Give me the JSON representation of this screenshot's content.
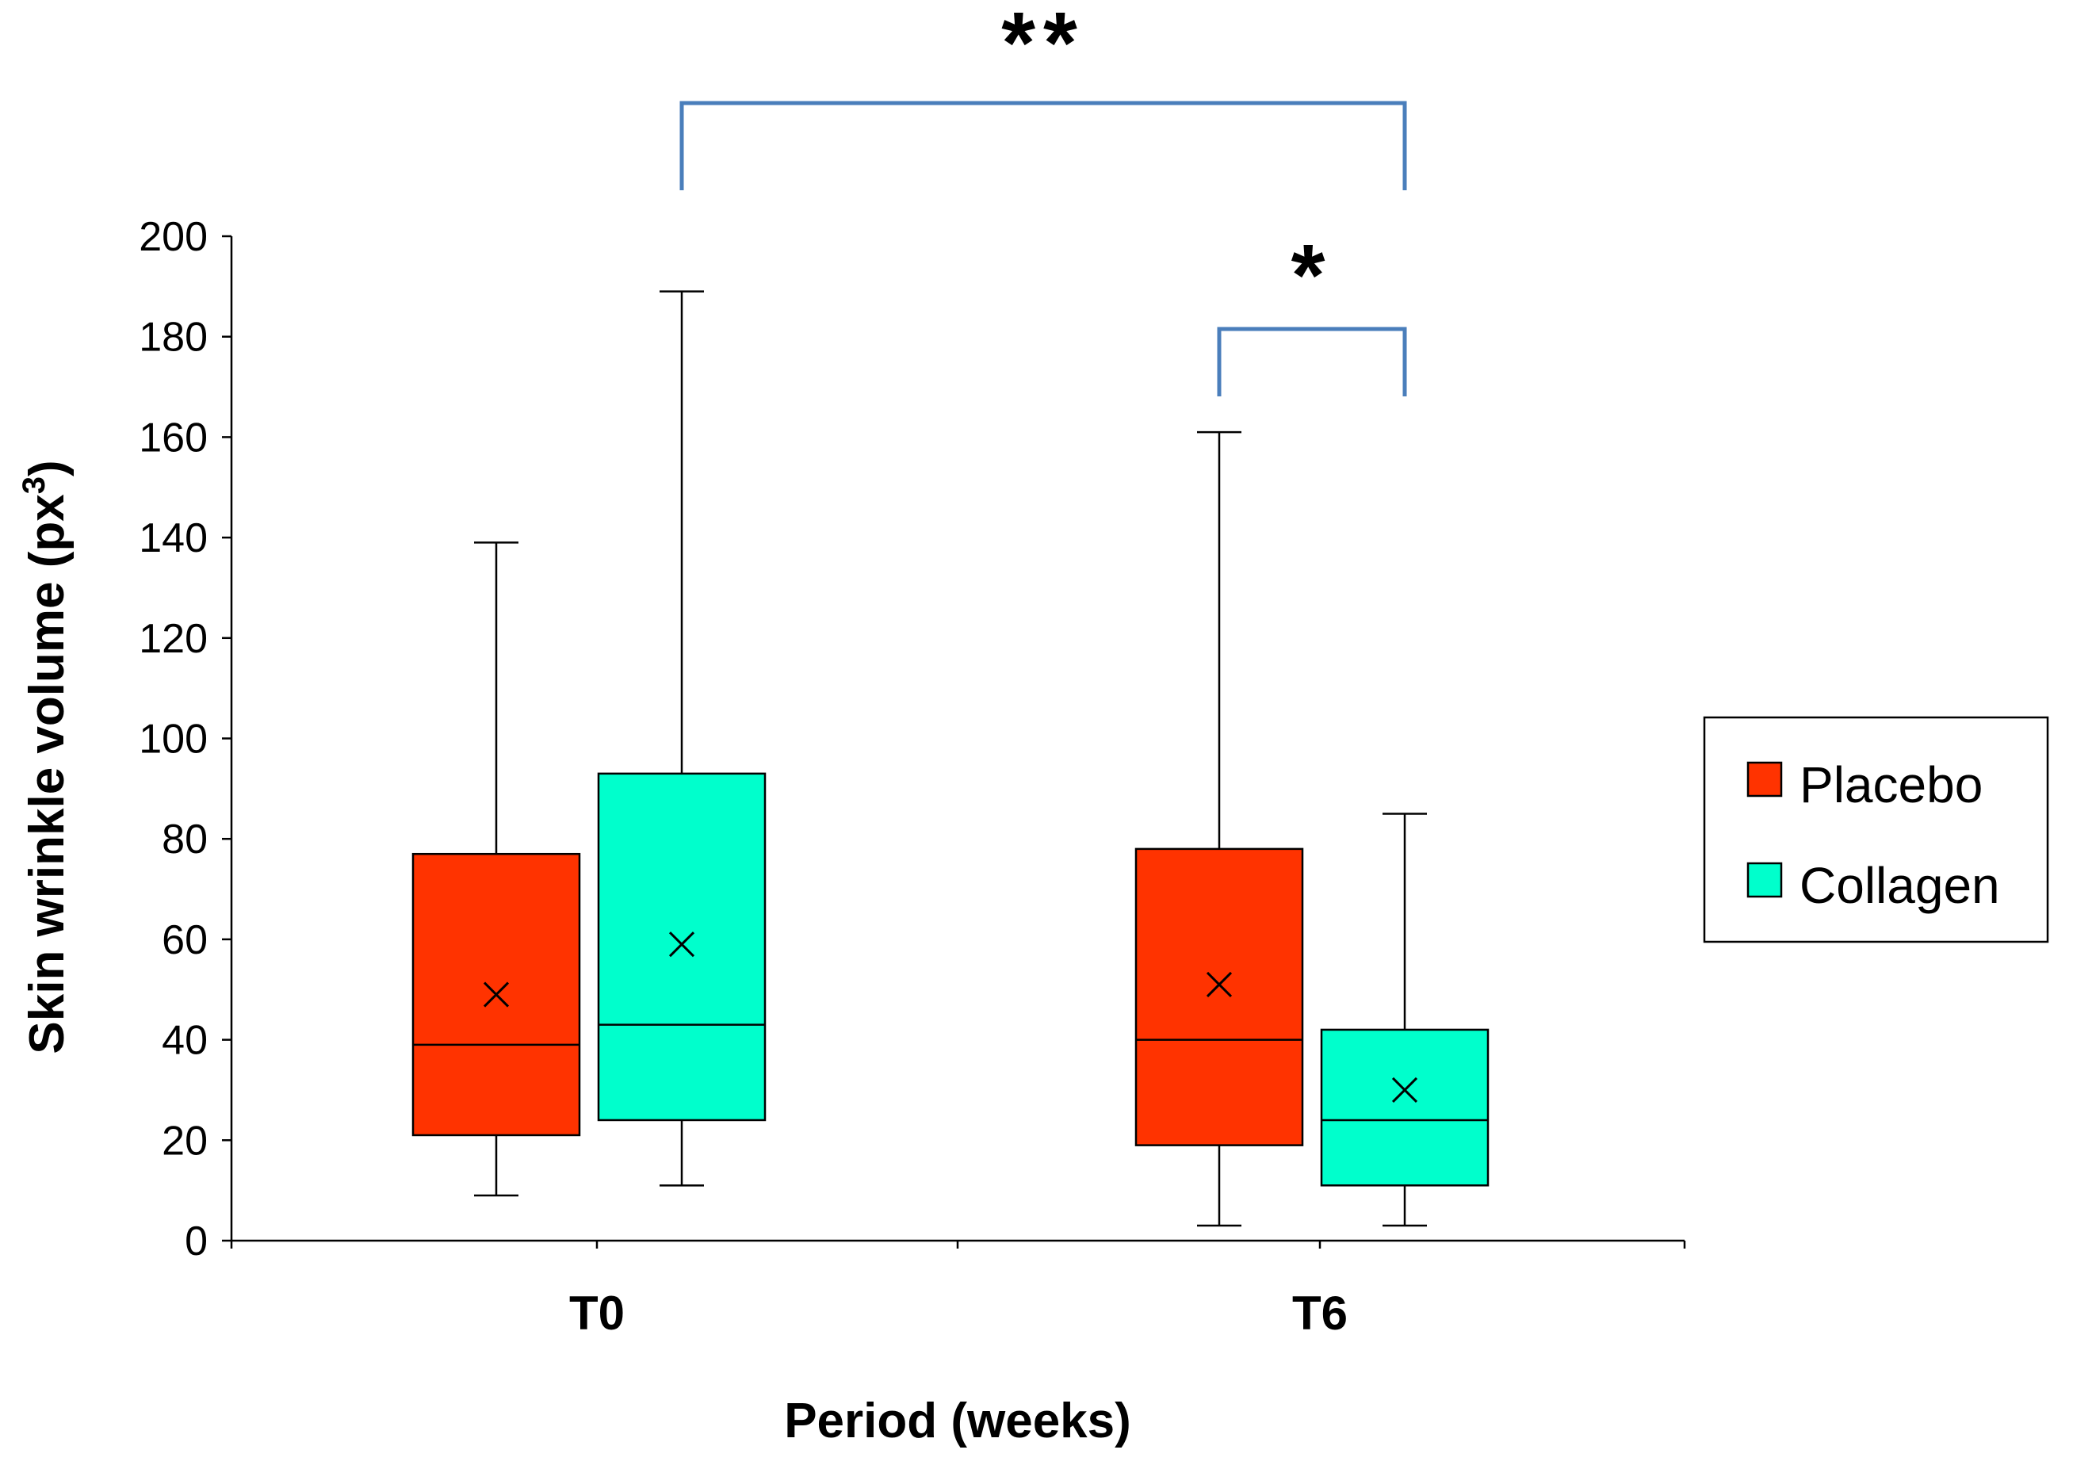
{
  "chart_data": {
    "type": "boxplot",
    "title": "",
    "xlabel": "Period (weeks)",
    "ylabel": "Skin wrinkle volume (px",
    "ylabel_sup": "3",
    "ylabel_close": ")",
    "ylim": [
      0,
      200
    ],
    "yticks": [
      0,
      20,
      40,
      60,
      80,
      100,
      120,
      140,
      160,
      180,
      200
    ],
    "categories": [
      "T0",
      "T6"
    ],
    "legend_position": "right",
    "series": [
      {
        "name": "Placebo",
        "color": "#ff3300",
        "boxes": [
          {
            "category": "T0",
            "min": 9,
            "q1": 21,
            "median": 39,
            "q3": 77,
            "max": 139,
            "mean": 49
          },
          {
            "category": "T6",
            "min": 3,
            "q1": 19,
            "median": 40,
            "q3": 78,
            "max": 161,
            "mean": 51
          }
        ]
      },
      {
        "name": "Collagen",
        "color": "#00ffcc",
        "boxes": [
          {
            "category": "T0",
            "min": 11,
            "q1": 24,
            "median": 43,
            "q3": 93,
            "max": 189,
            "mean": 59
          },
          {
            "category": "T6",
            "min": 3,
            "q1": 11,
            "median": 24,
            "q3": 42,
            "max": 85,
            "mean": 30
          }
        ]
      }
    ],
    "significance": [
      {
        "label": "**",
        "from": {
          "category": "T0",
          "series": "Collagen"
        },
        "to": {
          "category": "T6",
          "series": "Collagen"
        }
      },
      {
        "label": "*",
        "from": {
          "category": "T6",
          "series": "Placebo"
        },
        "to": {
          "category": "T6",
          "series": "Collagen"
        }
      }
    ],
    "bracket_color": "#4a7ebb"
  }
}
